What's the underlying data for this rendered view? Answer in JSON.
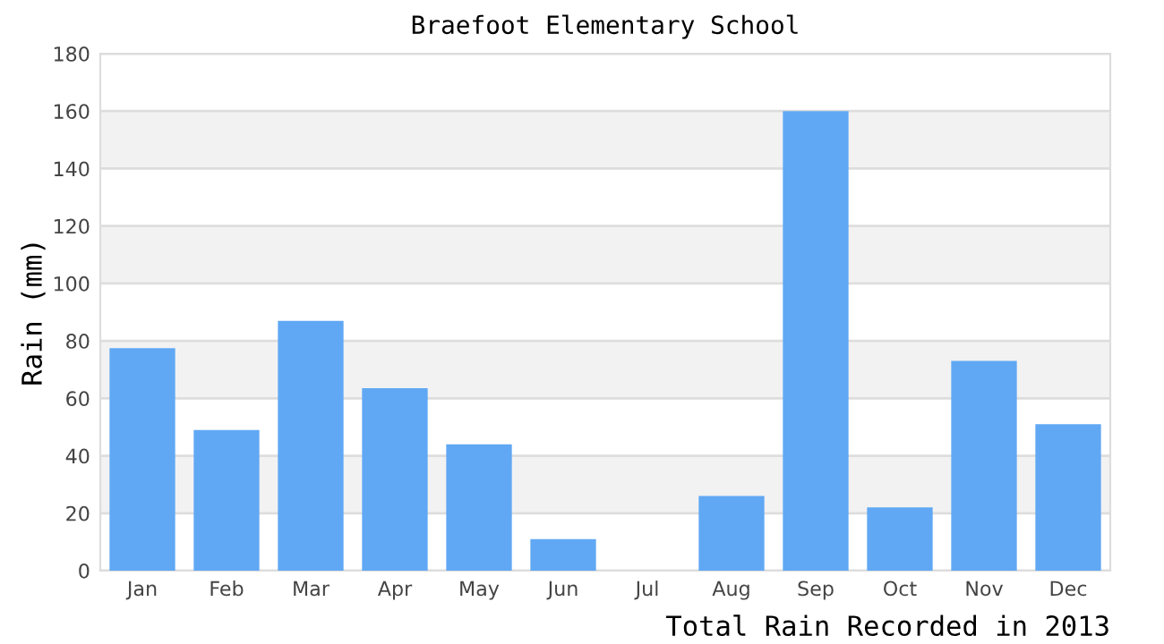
{
  "chart_data": {
    "type": "bar",
    "title": "Braefoot Elementary School",
    "xlabel": "Total Rain Recorded in 2013",
    "ylabel": "Rain (mm)",
    "categories": [
      "Jan",
      "Feb",
      "Mar",
      "Apr",
      "May",
      "Jun",
      "Jul",
      "Aug",
      "Sep",
      "Oct",
      "Nov",
      "Dec"
    ],
    "values": [
      77.5,
      49,
      87,
      63.5,
      44,
      11,
      0,
      26,
      160,
      22,
      73,
      51
    ],
    "color": "#60a8f4",
    "ylim": [
      0,
      180
    ],
    "yticks": [
      0,
      20,
      40,
      60,
      80,
      100,
      120,
      140,
      160,
      180
    ],
    "grid": "y"
  }
}
